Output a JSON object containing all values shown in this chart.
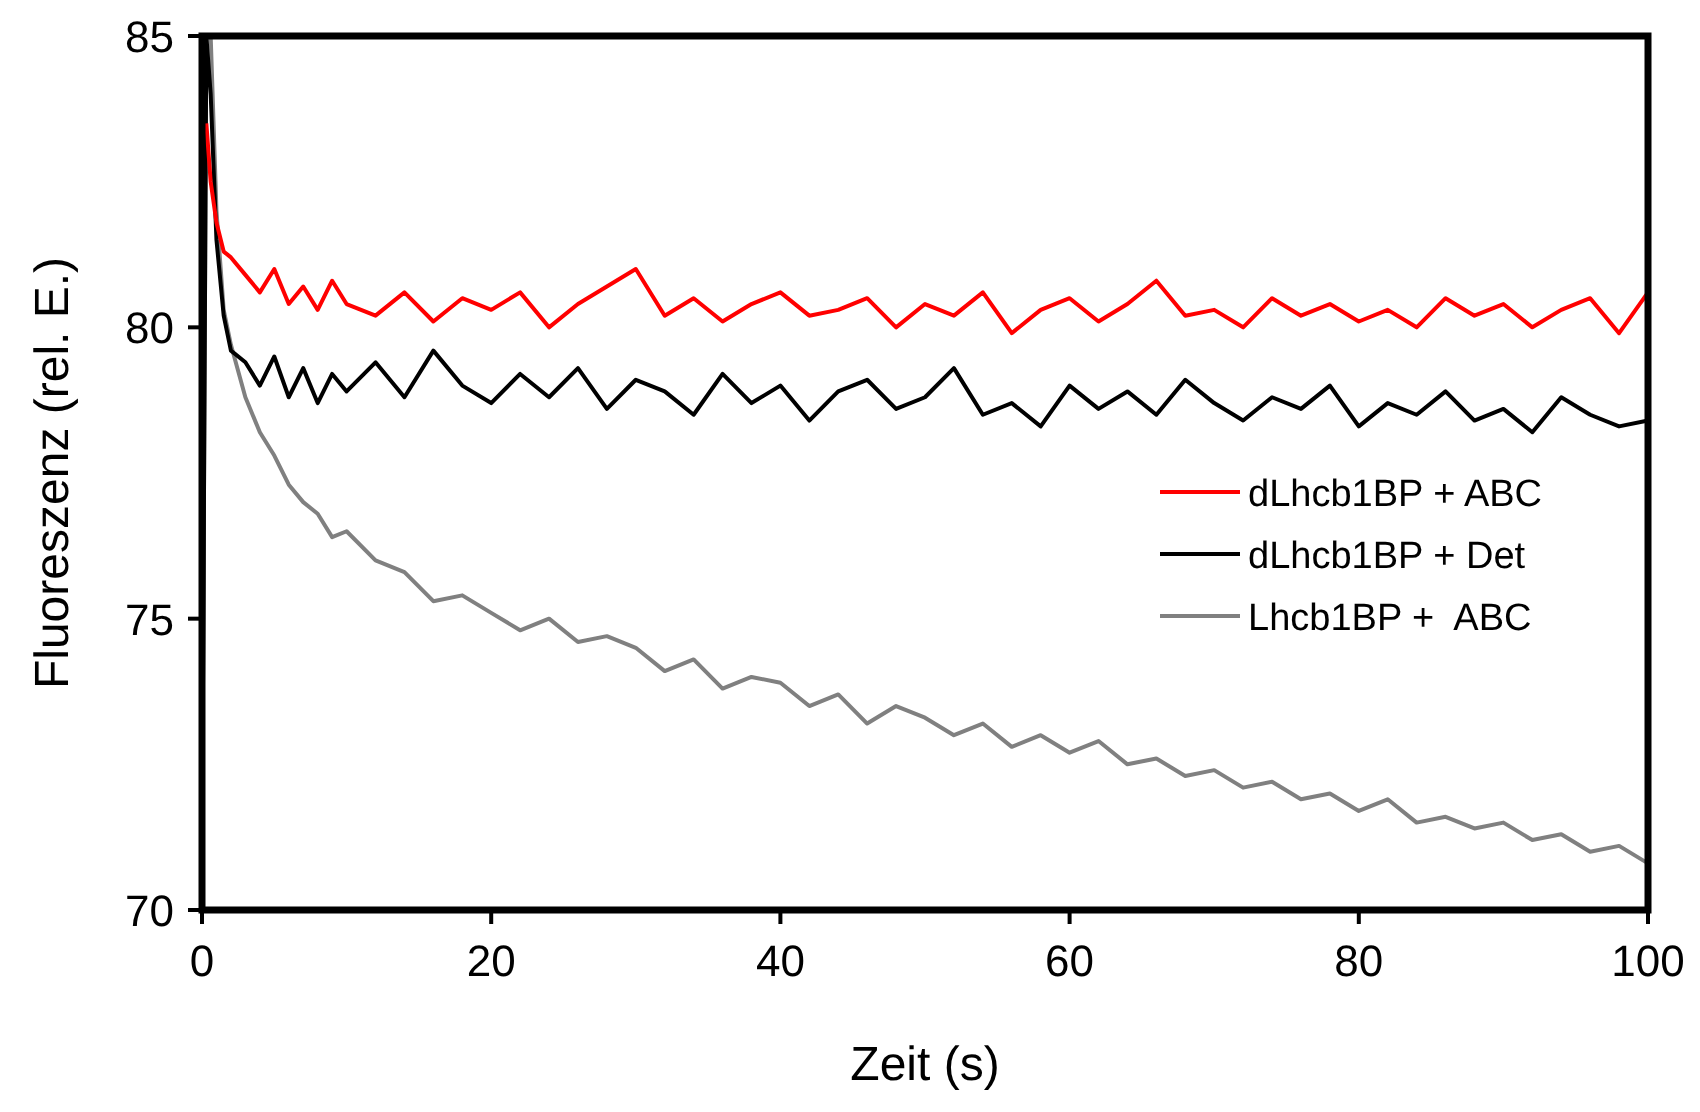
{
  "chart_data": {
    "type": "line",
    "xlabel": "Zeit (s)",
    "ylabel": "Fluoreszenz (rel. E.)",
    "x": [
      0,
      0.3,
      0.6,
      1,
      1.5,
      2,
      3,
      4,
      5,
      6,
      7,
      8,
      9,
      10,
      12,
      14,
      16,
      18,
      20,
      22,
      24,
      26,
      28,
      30,
      32,
      34,
      36,
      38,
      40,
      42,
      44,
      46,
      48,
      50,
      52,
      54,
      56,
      58,
      60,
      62,
      64,
      66,
      68,
      70,
      72,
      74,
      76,
      78,
      80,
      82,
      84,
      86,
      88,
      90,
      92,
      94,
      96,
      98,
      100
    ],
    "series": [
      {
        "name": "dLhcb1BP + ABC",
        "color": "#ff0000",
        "values": [
          null,
          83.5,
          82.5,
          81.8,
          81.3,
          81.2,
          80.9,
          80.6,
          81.0,
          80.4,
          80.7,
          80.3,
          80.8,
          80.4,
          80.2,
          80.6,
          80.1,
          80.5,
          80.3,
          80.6,
          80.0,
          80.4,
          80.7,
          81.0,
          80.2,
          80.5,
          80.1,
          80.4,
          80.6,
          80.2,
          80.3,
          80.5,
          80.0,
          80.4,
          80.2,
          80.6,
          79.9,
          80.3,
          80.5,
          80.1,
          80.4,
          80.8,
          80.2,
          80.3,
          80.0,
          80.5,
          80.2,
          80.4,
          80.1,
          80.3,
          80.0,
          80.5,
          80.2,
          80.4,
          80.0,
          80.3,
          80.5,
          79.9,
          80.6
        ]
      },
      {
        "name": "dLhcb1BP + Det",
        "color": "#000000",
        "values": [
          70.5,
          85,
          84,
          81.5,
          80.2,
          79.6,
          79.4,
          79.0,
          79.5,
          78.8,
          79.3,
          78.7,
          79.2,
          78.9,
          79.4,
          78.8,
          79.6,
          79.0,
          78.7,
          79.2,
          78.8,
          79.3,
          78.6,
          79.1,
          78.9,
          78.5,
          79.2,
          78.7,
          79.0,
          78.4,
          78.9,
          79.1,
          78.6,
          78.8,
          79.3,
          78.5,
          78.7,
          78.3,
          79.0,
          78.6,
          78.9,
          78.5,
          79.1,
          78.7,
          78.4,
          78.8,
          78.6,
          79.0,
          78.3,
          78.7,
          78.5,
          78.9,
          78.4,
          78.6,
          78.2,
          78.8,
          78.5,
          78.3,
          78.4
        ]
      },
      {
        "name": "Lhcb1BP +  ABC",
        "color": "#808080",
        "values": [
          70.5,
          85,
          85,
          82,
          80.3,
          79.7,
          78.8,
          78.2,
          77.8,
          77.3,
          77.0,
          76.8,
          76.4,
          76.5,
          76.0,
          75.8,
          75.3,
          75.4,
          75.1,
          74.8,
          75.0,
          74.6,
          74.7,
          74.5,
          74.1,
          74.3,
          73.8,
          74.0,
          73.9,
          73.5,
          73.7,
          73.2,
          73.5,
          73.3,
          73.0,
          73.2,
          72.8,
          73.0,
          72.7,
          72.9,
          72.5,
          72.6,
          72.3,
          72.4,
          72.1,
          72.2,
          71.9,
          72.0,
          71.7,
          71.9,
          71.5,
          71.6,
          71.4,
          71.5,
          71.2,
          71.3,
          71.0,
          71.1,
          70.8
        ]
      }
    ],
    "xlim": [
      0,
      100
    ],
    "xticks": [
      0,
      20,
      40,
      60,
      80,
      100
    ],
    "ylim": [
      70,
      85
    ],
    "yticks": [
      70,
      75,
      80,
      85
    ],
    "legend": "right",
    "grid": false,
    "marker": "none",
    "line_style": "solid"
  }
}
